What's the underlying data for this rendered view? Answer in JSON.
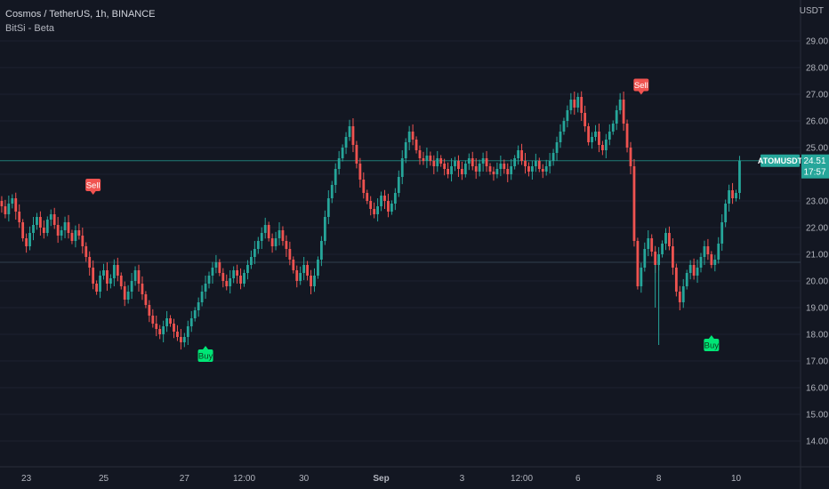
{
  "header": {
    "symbol_line": "Cosmos / TetherUS, 1h, BINANCE",
    "indicator_name": "BitSi - Beta",
    "axis_unit": "USDT"
  },
  "colors": {
    "background": "#131722",
    "up": "#26a69a",
    "down": "#ef5350",
    "buy_label": "#00e676",
    "sell_label": "#f05350",
    "last_price_line": "#26a69a",
    "axis_text": "#b2b5be",
    "gridline": "#1e2230"
  },
  "price_label": {
    "ticker": "ATOMUSDT",
    "price": "24.51",
    "countdown": "17:57"
  },
  "signals": [
    {
      "text": "Sell",
      "x_index": 27,
      "price": 23.6,
      "type": "sell"
    },
    {
      "text": "Buy",
      "x_index": 59,
      "price": 17.2,
      "type": "buy"
    },
    {
      "text": "Sell",
      "x_index": 183,
      "price": 27.35,
      "type": "sell"
    },
    {
      "text": "Buy",
      "x_index": 203,
      "price": 17.6,
      "type": "buy"
    }
  ],
  "chart_data": {
    "type": "candlestick",
    "title": "Cosmos / TetherUS, 1h, BINANCE",
    "ylim": [
      13.2,
      30.2
    ],
    "y_ticks": [
      "14.00",
      "15.00",
      "16.00",
      "17.00",
      "18.00",
      "19.00",
      "20.00",
      "21.00",
      "22.00",
      "23.00",
      "24.00",
      "25.00",
      "26.00",
      "27.00",
      "28.00",
      "29.00"
    ],
    "x_ticks": [
      {
        "label": "23",
        "index": 8
      },
      {
        "label": "25",
        "index": 30
      },
      {
        "label": "27",
        "index": 53
      },
      {
        "label": "12:00",
        "index": 70
      },
      {
        "label": "30",
        "index": 87
      },
      {
        "label": "Sep",
        "index": 109
      },
      {
        "label": "3",
        "index": 132
      },
      {
        "label": "12:00",
        "index": 149
      },
      {
        "label": "6",
        "index": 165
      },
      {
        "label": "8",
        "index": 188
      },
      {
        "label": "10",
        "index": 210
      }
    ],
    "horizontal_levels": [
      24.51,
      20.7
    ],
    "series": [
      {
        "name": "ATOMUSDT",
        "close": [
          23.0,
          22.8,
          22.5,
          22.9,
          23.1,
          22.6,
          22.2,
          21.6,
          21.3,
          21.8,
          22.1,
          22.4,
          22.0,
          21.8,
          22.3,
          22.5,
          22.1,
          21.7,
          21.9,
          22.2,
          21.8,
          21.5,
          21.9,
          21.7,
          21.3,
          20.9,
          20.5,
          19.9,
          19.6,
          20.2,
          20.4,
          19.9,
          20.1,
          20.6,
          20.2,
          19.8,
          19.3,
          19.6,
          20.0,
          20.4,
          19.9,
          19.5,
          19.1,
          18.7,
          18.4,
          18.2,
          18.0,
          18.3,
          18.6,
          18.4,
          18.1,
          17.9,
          17.7,
          17.9,
          18.3,
          18.6,
          18.9,
          19.2,
          19.6,
          19.9,
          20.2,
          20.5,
          20.7,
          20.3,
          20.0,
          19.8,
          20.1,
          20.4,
          20.2,
          19.9,
          20.3,
          20.6,
          20.9,
          21.2,
          21.5,
          21.8,
          22.1,
          21.6,
          21.3,
          21.6,
          21.9,
          21.5,
          21.2,
          20.8,
          20.4,
          20.0,
          20.3,
          20.6,
          20.2,
          19.8,
          20.2,
          20.8,
          21.5,
          22.4,
          23.1,
          23.6,
          24.2,
          24.6,
          25.0,
          25.4,
          25.8,
          25.1,
          24.4,
          23.8,
          23.3,
          23.0,
          22.7,
          22.5,
          22.8,
          23.2,
          23.0,
          22.6,
          22.9,
          23.3,
          23.9,
          24.6,
          25.2,
          25.6,
          25.3,
          24.9,
          24.6,
          24.5,
          24.7,
          24.5,
          24.3,
          24.6,
          24.4,
          24.2,
          24.0,
          24.3,
          24.5,
          24.2,
          24.0,
          24.4,
          24.6,
          24.3,
          24.1,
          24.4,
          24.6,
          24.3,
          24.1,
          24.0,
          24.2,
          24.4,
          24.2,
          24.0,
          24.3,
          24.6,
          24.9,
          24.5,
          24.3,
          24.1,
          24.3,
          24.5,
          24.2,
          24.1,
          24.3,
          24.5,
          24.8,
          25.2,
          25.6,
          26.0,
          26.4,
          26.8,
          26.5,
          26.9,
          26.3,
          25.8,
          25.2,
          25.4,
          25.6,
          25.1,
          24.9,
          25.3,
          25.6,
          25.9,
          26.4,
          26.8,
          25.9,
          25.0,
          24.3,
          21.5,
          19.8,
          20.5,
          21.2,
          21.6,
          21.1,
          20.6,
          21.0,
          21.4,
          21.8,
          21.3,
          20.5,
          19.6,
          19.2,
          19.8,
          20.3,
          20.6,
          20.2,
          20.5,
          20.9,
          21.3,
          21.0,
          20.6,
          20.8,
          21.4,
          22.2,
          22.9,
          23.4,
          23.1,
          23.3,
          24.51
        ]
      }
    ]
  }
}
